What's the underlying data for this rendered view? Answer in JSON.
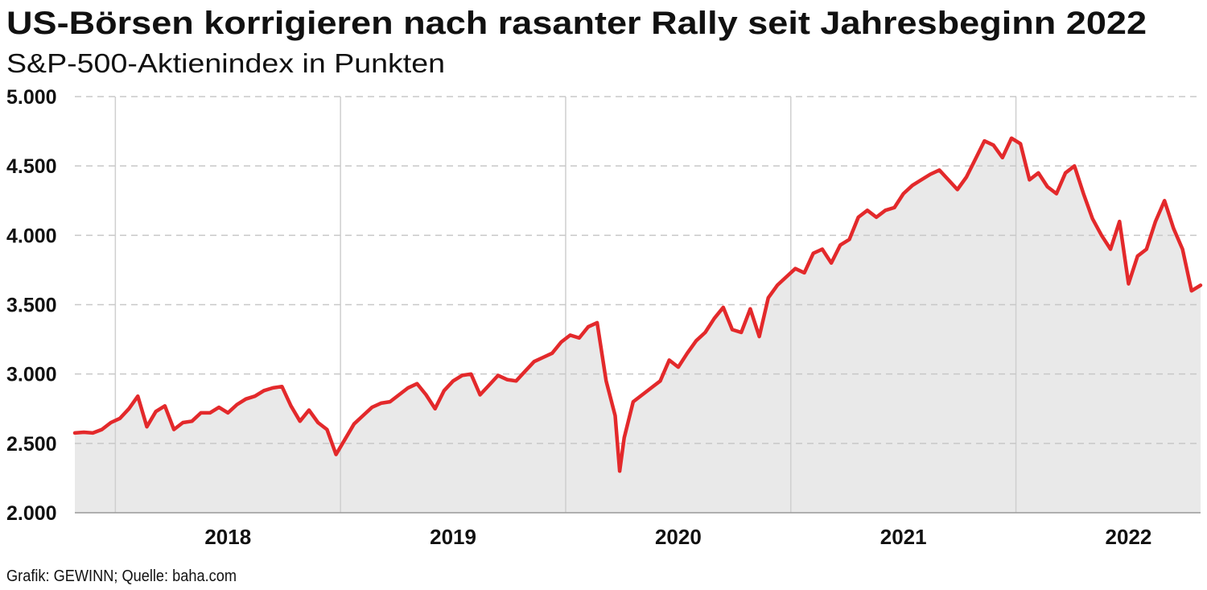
{
  "chart_data": {
    "type": "line",
    "title": "US-Börsen korrigieren nach rasanter Rally seit Jahresbeginn 2022",
    "subtitle": "S&P-500-Aktienindex in Punkten",
    "source": "Grafik: GEWINN; Quelle: baha.com",
    "x": [
      2017.82,
      2017.86,
      2017.9,
      2017.94,
      2017.98,
      2018.02,
      2018.06,
      2018.1,
      2018.14,
      2018.18,
      2018.22,
      2018.26,
      2018.3,
      2018.34,
      2018.38,
      2018.42,
      2018.46,
      2018.5,
      2018.54,
      2018.58,
      2018.62,
      2018.66,
      2018.7,
      2018.74,
      2018.78,
      2018.82,
      2018.86,
      2018.9,
      2018.94,
      2018.98,
      2019.02,
      2019.06,
      2019.1,
      2019.14,
      2019.18,
      2019.22,
      2019.26,
      2019.3,
      2019.34,
      2019.38,
      2019.42,
      2019.46,
      2019.5,
      2019.54,
      2019.58,
      2019.62,
      2019.66,
      2019.7,
      2019.74,
      2019.78,
      2019.82,
      2019.86,
      2019.9,
      2019.94,
      2019.98,
      2020.02,
      2020.06,
      2020.1,
      2020.14,
      2020.18,
      2020.22,
      2020.24,
      2020.26,
      2020.3,
      2020.34,
      2020.38,
      2020.42,
      2020.46,
      2020.5,
      2020.54,
      2020.58,
      2020.62,
      2020.66,
      2020.7,
      2020.74,
      2020.78,
      2020.82,
      2020.86,
      2020.9,
      2020.94,
      2020.98,
      2021.02,
      2021.06,
      2021.1,
      2021.14,
      2021.18,
      2021.22,
      2021.26,
      2021.3,
      2021.34,
      2021.38,
      2021.42,
      2021.46,
      2021.5,
      2021.54,
      2021.58,
      2021.62,
      2021.66,
      2021.7,
      2021.74,
      2021.78,
      2021.82,
      2021.86,
      2021.9,
      2021.94,
      2021.98,
      2022.02,
      2022.06,
      2022.1,
      2022.14,
      2022.18,
      2022.22,
      2022.26,
      2022.3,
      2022.34,
      2022.38,
      2022.42,
      2022.46,
      2022.5,
      2022.54,
      2022.58,
      2022.62,
      2022.66,
      2022.7,
      2022.74,
      2022.78,
      2022.82
    ],
    "series": [
      {
        "name": "S&P 500",
        "color": "#e3292b",
        "values": [
          2575,
          2580,
          2575,
          2600,
          2650,
          2680,
          2750,
          2840,
          2620,
          2730,
          2770,
          2600,
          2650,
          2660,
          2720,
          2720,
          2760,
          2720,
          2780,
          2820,
          2840,
          2880,
          2900,
          2910,
          2770,
          2660,
          2740,
          2650,
          2600,
          2420,
          2530,
          2640,
          2700,
          2760,
          2790,
          2800,
          2850,
          2900,
          2930,
          2850,
          2750,
          2880,
          2950,
          2990,
          3000,
          2850,
          2920,
          2990,
          2960,
          2950,
          3020,
          3090,
          3120,
          3150,
          3230,
          3280,
          3260,
          3340,
          3370,
          2950,
          2700,
          2300,
          2540,
          2800,
          2850,
          2900,
          2950,
          3100,
          3050,
          3150,
          3240,
          3300,
          3400,
          3480,
          3320,
          3300,
          3470,
          3270,
          3550,
          3640,
          3700,
          3760,
          3730,
          3870,
          3900,
          3800,
          3930,
          3970,
          4130,
          4180,
          4130,
          4180,
          4200,
          4300,
          4360,
          4400,
          4440,
          4470,
          4400,
          4330,
          4420,
          4550,
          4680,
          4650,
          4560,
          4700,
          4660,
          4400,
          4450,
          4350,
          4300,
          4450,
          4500,
          4300,
          4120,
          4000,
          3900,
          4100,
          3650,
          3850,
          3900,
          4100,
          4250,
          4050,
          3900,
          3600,
          3640
        ]
      }
    ],
    "xlim": [
      2017.82,
      2022.82
    ],
    "xticks": [
      {
        "value": 2018.5,
        "label": "2018"
      },
      {
        "value": 2019.5,
        "label": "2019"
      },
      {
        "value": 2020.5,
        "label": "2020"
      },
      {
        "value": 2021.5,
        "label": "2021"
      },
      {
        "value": 2022.5,
        "label": "2022"
      }
    ],
    "xgrid": [
      2018,
      2019,
      2020,
      2021,
      2022
    ],
    "ylim": [
      2000,
      5000
    ],
    "yticks": [
      {
        "value": 2000,
        "label": "2.000"
      },
      {
        "value": 2500,
        "label": "2.500"
      },
      {
        "value": 3000,
        "label": "3.000"
      },
      {
        "value": 3500,
        "label": "3.500"
      },
      {
        "value": 4000,
        "label": "4.000"
      },
      {
        "value": 4500,
        "label": "4.500"
      },
      {
        "value": 5000,
        "label": "5.000"
      }
    ],
    "grid": true,
    "area_color": "#e9e9e9"
  }
}
